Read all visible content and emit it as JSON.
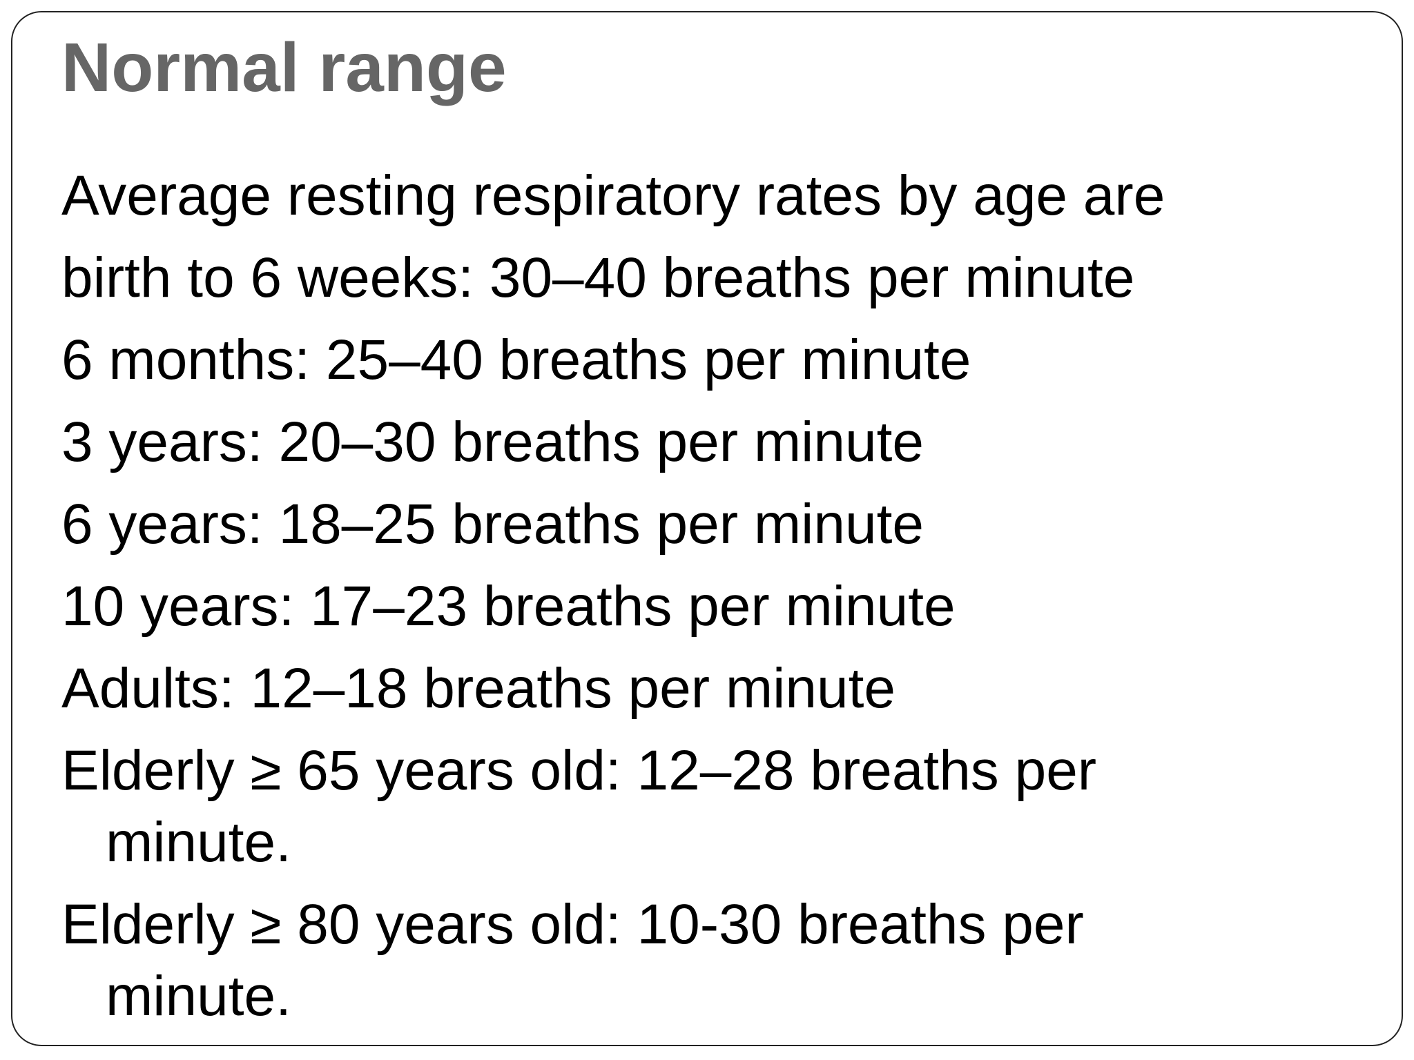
{
  "slide": {
    "title": "Normal range",
    "intro": "Average resting respiratory rates by age are",
    "items": [
      "birth to 6 weeks: 30–40 breaths per minute",
      "6 months: 25–40 breaths per minute",
      "3 years: 20–30 breaths per minute",
      "6 years: 18–25 breaths per minute",
      "10 years: 17–23 breaths per minute",
      "Adults: 12–18 breaths per minute",
      "Elderly ≥ 65 years old: 12–28 breaths per minute.",
      "Elderly ≥ 80 years old: 10-30 breaths per minute."
    ]
  }
}
